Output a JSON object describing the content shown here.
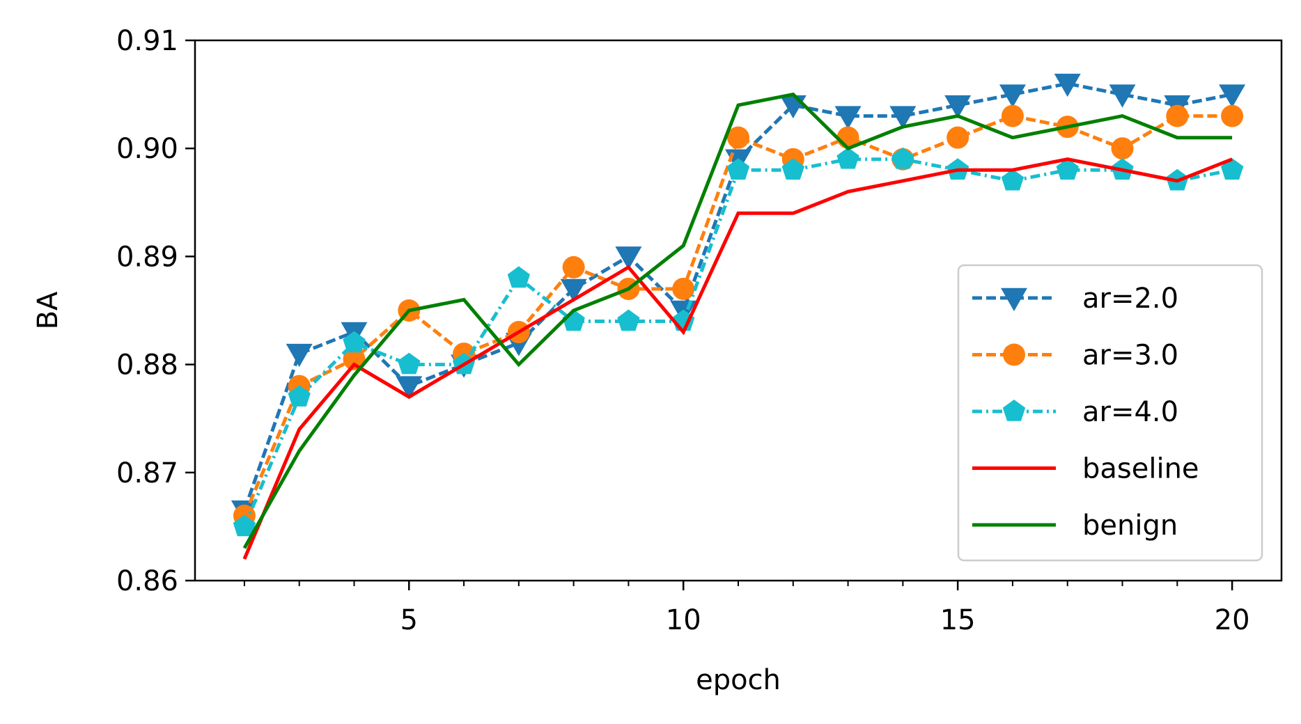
{
  "chart_data": {
    "type": "line",
    "title": "",
    "xlabel": "epoch",
    "ylabel": "BA",
    "xlim": [
      1.1,
      20.9
    ],
    "ylim": [
      0.86,
      0.91
    ],
    "xticks_major": [
      5,
      10,
      15,
      20
    ],
    "xtick_labels": [
      "5",
      "10",
      "15",
      "20"
    ],
    "xticks_minor": [
      2,
      3,
      4,
      6,
      7,
      8,
      9,
      11,
      12,
      13,
      14,
      16,
      17,
      18,
      19
    ],
    "yticks": [
      0.86,
      0.87,
      0.88,
      0.89,
      0.9,
      0.91
    ],
    "ytick_labels": [
      "0.86",
      "0.87",
      "0.88",
      "0.89",
      "0.90",
      "0.91"
    ],
    "grid": false,
    "legend_position": "lower-right",
    "x": [
      2,
      3,
      4,
      5,
      6,
      7,
      8,
      9,
      10,
      11,
      12,
      13,
      14,
      15,
      16,
      17,
      18,
      19,
      20
    ],
    "series": [
      {
        "name": "ar=2.0",
        "color": "#1f77b4",
        "linestyle": "dashed",
        "marker": "triangle-down",
        "values": [
          0.8665,
          0.881,
          0.883,
          0.878,
          0.88,
          0.882,
          0.887,
          0.89,
          0.885,
          0.899,
          0.904,
          0.903,
          0.903,
          0.904,
          0.905,
          0.906,
          0.905,
          0.904,
          0.905
        ]
      },
      {
        "name": "ar=3.0",
        "color": "#ff7f0e",
        "linestyle": "dashed",
        "marker": "circle",
        "values": [
          0.866,
          0.878,
          0.8805,
          0.885,
          0.881,
          0.883,
          0.889,
          0.887,
          0.887,
          0.901,
          0.899,
          0.901,
          0.899,
          0.901,
          0.903,
          0.902,
          0.9,
          0.903,
          0.903
        ]
      },
      {
        "name": "ar=4.0",
        "color": "#17becf",
        "linestyle": "dashdot",
        "marker": "pentagon",
        "values": [
          0.865,
          0.877,
          0.882,
          0.88,
          0.88,
          0.888,
          0.884,
          0.884,
          0.884,
          0.898,
          0.898,
          0.899,
          0.899,
          0.898,
          0.897,
          0.898,
          0.898,
          0.897,
          0.898
        ]
      },
      {
        "name": "baseline",
        "color": "#ff0000",
        "linestyle": "solid",
        "marker": "none",
        "values": [
          0.862,
          0.874,
          0.88,
          0.877,
          0.88,
          0.883,
          0.886,
          0.889,
          0.883,
          0.894,
          0.894,
          0.896,
          0.897,
          0.898,
          0.898,
          0.899,
          0.898,
          0.897,
          0.899
        ]
      },
      {
        "name": "benign",
        "color": "#008000",
        "linestyle": "solid",
        "marker": "none",
        "values": [
          0.863,
          0.872,
          0.879,
          0.885,
          0.886,
          0.88,
          0.885,
          0.887,
          0.891,
          0.904,
          0.905,
          0.9,
          0.902,
          0.903,
          0.901,
          0.902,
          0.903,
          0.901,
          0.901
        ]
      }
    ]
  }
}
